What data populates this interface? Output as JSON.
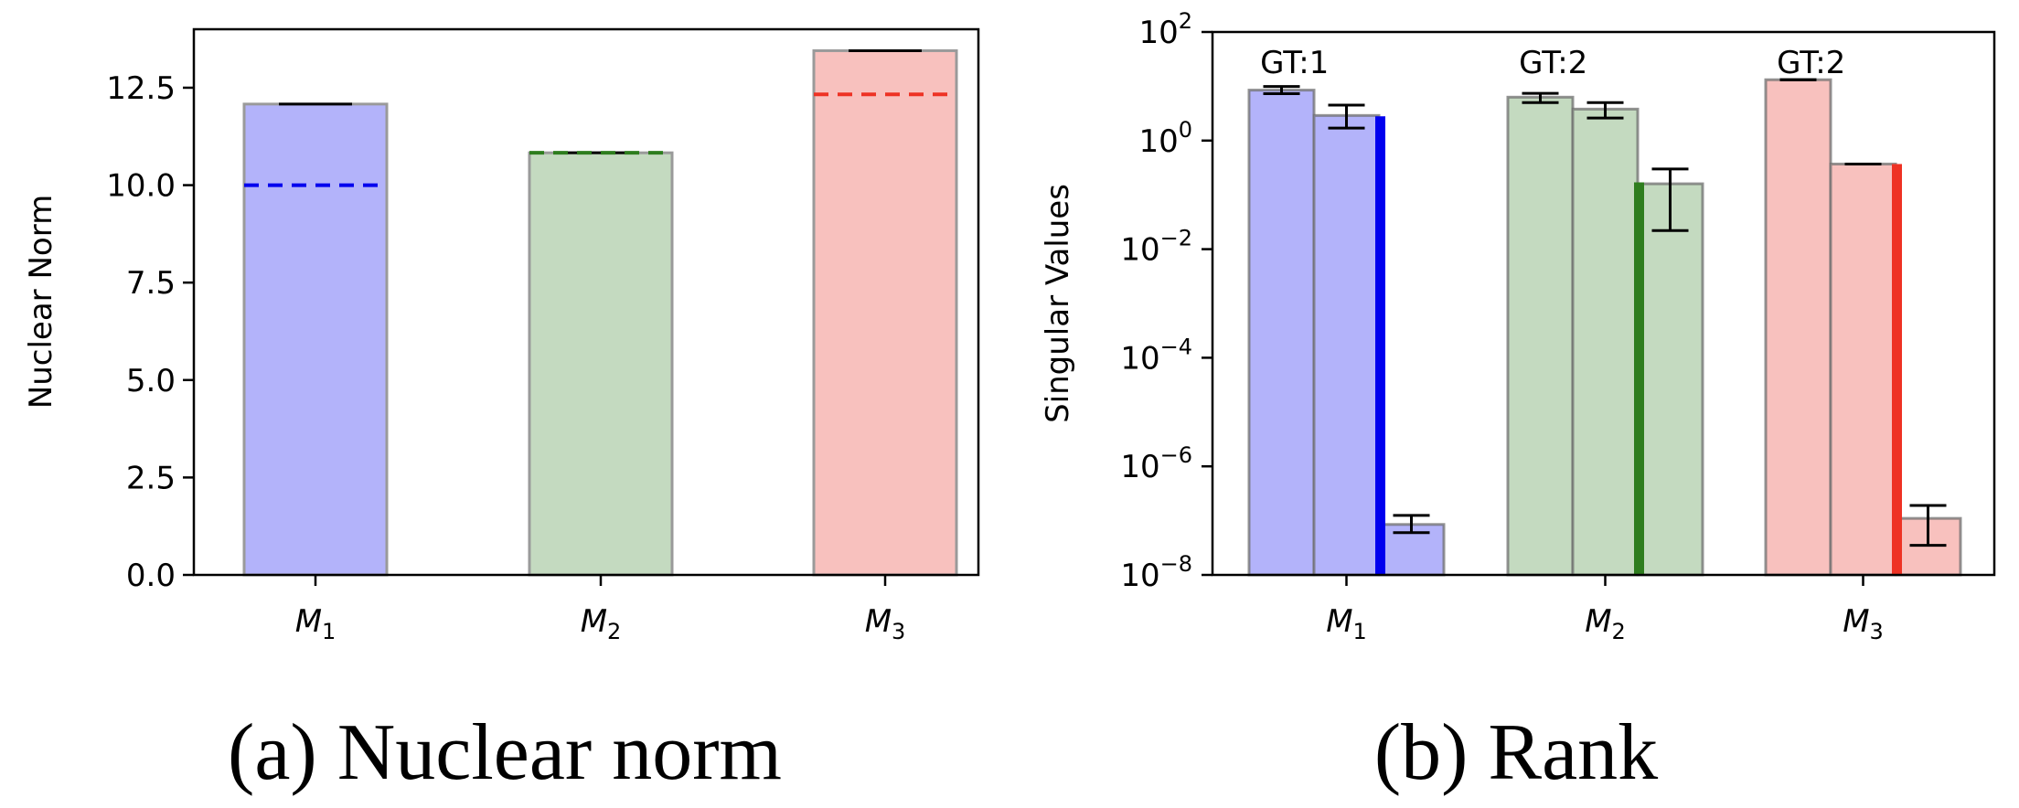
{
  "chart_data": [
    {
      "type": "bar",
      "caption": "(a) Nuclear norm",
      "ylabel": "Nuclear Norm",
      "ylim": [
        0,
        14
      ],
      "yticks": [
        "0.0",
        "2.5",
        "5.0",
        "7.5",
        "10.0",
        "12.5"
      ],
      "ytick_values": [
        0,
        2.5,
        5,
        7.5,
        10,
        12.5
      ],
      "categories": [
        {
          "base": "M",
          "sub": "1"
        },
        {
          "base": "M",
          "sub": "2"
        },
        {
          "base": "M",
          "sub": "3"
        }
      ],
      "values": [
        12.08,
        10.83,
        13.45
      ],
      "reference_values": [
        10.0,
        10.83,
        12.33
      ],
      "colors": [
        "#b3b3fa",
        "#c4dac0",
        "#f8c1be"
      ],
      "reference_colors": [
        "#0000ee",
        "#2e7d1e",
        "#ee3224"
      ]
    },
    {
      "type": "bar",
      "caption": "(b) Rank",
      "ylabel": "Singular Values",
      "yscale": "log",
      "ylim": [
        1e-08,
        100
      ],
      "yticks": [
        {
          "base": "10",
          "exp": "2"
        },
        {
          "base": "10",
          "exp": "0"
        },
        {
          "base": "10",
          "exp": "−2"
        },
        {
          "base": "10",
          "exp": "−4"
        },
        {
          "base": "10",
          "exp": "−6"
        },
        {
          "base": "10",
          "exp": "−8"
        }
      ],
      "ytick_values": [
        100,
        1,
        0.01,
        0.0001,
        1e-06,
        1e-08
      ],
      "groups": [
        {
          "label": {
            "base": "M",
            "sub": "1"
          },
          "annotation": "GT:1",
          "values": [
            8.5,
            2.9,
            8.5e-08
          ],
          "errors": [
            [
              7.3,
              9.9
            ],
            [
              1.7,
              4.5
            ],
            [
              6e-08,
              1.25e-07
            ]
          ],
          "threshold": 2.8,
          "color": "#b3b3fa",
          "line_color": "#0000ee"
        },
        {
          "label": {
            "base": "M",
            "sub": "2"
          },
          "annotation": "GT:2",
          "values": [
            6.3,
            3.8,
            0.16
          ],
          "errors": [
            [
              5.0,
              7.4
            ],
            [
              2.6,
              5.0
            ],
            [
              0.022,
              0.3
            ]
          ],
          "threshold": 0.17,
          "color": "#c4dac0",
          "line_color": "#2e7d1e"
        },
        {
          "label": {
            "base": "M",
            "sub": "3"
          },
          "annotation": "GT:2",
          "values": [
            13.2,
            0.37,
            1.1e-07
          ],
          "errors": [
            [
              13.2,
              13.2
            ],
            [
              0.37,
              0.37
            ],
            [
              3.5e-08,
              1.9e-07
            ]
          ],
          "threshold": 0.37,
          "color": "#f8c1be",
          "line_color": "#ee3224"
        }
      ]
    }
  ]
}
